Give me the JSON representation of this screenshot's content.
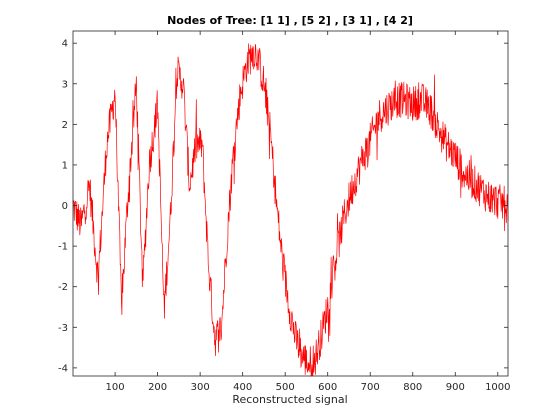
{
  "chart_data": {
    "type": "line",
    "title": "Nodes of Tree: [1  1] , [5  2] , [3  1] , [4  2]",
    "xlabel": "Reconstructed signal",
    "ylabel": "",
    "xlim": [
      1,
      1024
    ],
    "ylim": [
      -4.2,
      4.3
    ],
    "x_ticks": [
      100,
      200,
      300,
      400,
      500,
      600,
      700,
      800,
      900,
      1000
    ],
    "y_ticks": [
      -4,
      -3,
      -2,
      -1,
      0,
      1,
      2,
      3,
      4
    ],
    "x_tick_labels": [
      "100",
      "200",
      "300",
      "400",
      "500",
      "600",
      "700",
      "800",
      "900",
      "1000"
    ],
    "y_tick_labels": [
      "-4",
      "-3",
      "-2",
      "-1",
      "0",
      "1",
      "2",
      "3",
      "4"
    ],
    "grid": false,
    "series": [
      {
        "color": "#ff0000",
        "x": [
          1,
          20,
          40,
          60,
          80,
          100,
          115,
          130,
          150,
          165,
          180,
          200,
          215,
          230,
          245,
          260,
          275,
          290,
          305,
          320,
          335,
          350,
          365,
          380,
          395,
          410,
          425,
          435,
          450,
          465,
          480,
          495,
          510,
          525,
          540,
          555,
          570,
          585,
          600,
          620,
          640,
          660,
          680,
          700,
          720,
          740,
          760,
          780,
          800,
          820,
          840,
          860,
          880,
          900,
          920,
          940,
          960,
          980,
          1000,
          1024
        ],
        "y": [
          0.0,
          -0.5,
          0.5,
          -1.8,
          1.5,
          2.8,
          -2.5,
          0.2,
          3.0,
          -2.0,
          1.0,
          2.5,
          -2.6,
          -0.3,
          3.3,
          3.0,
          0.5,
          1.5,
          1.5,
          -1.5,
          -3.3,
          -3.0,
          -0.5,
          1.5,
          2.8,
          3.5,
          3.8,
          3.7,
          3.0,
          1.8,
          0.0,
          -1.5,
          -2.5,
          -3.3,
          -3.7,
          -3.9,
          -3.8,
          -3.2,
          -2.5,
          -1.2,
          -0.2,
          0.5,
          1.1,
          1.6,
          2.2,
          2.4,
          2.6,
          2.6,
          2.5,
          2.6,
          2.4,
          1.9,
          1.5,
          1.2,
          0.8,
          0.6,
          0.4,
          0.2,
          0.1,
          0.0
        ]
      }
    ]
  }
}
